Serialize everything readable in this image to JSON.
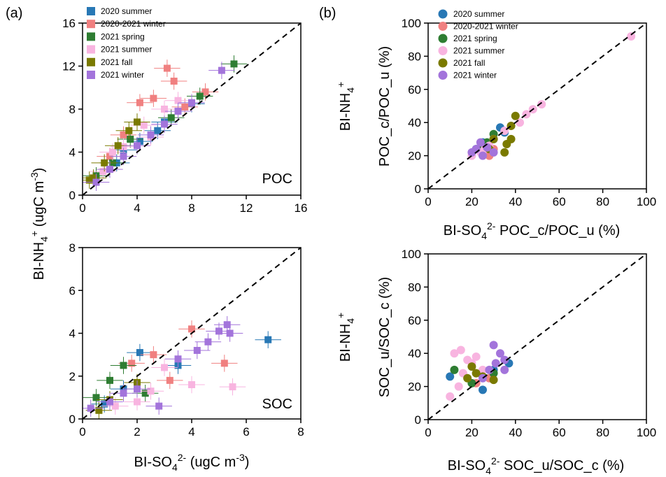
{
  "panel_letters": [
    "(a)",
    "(b)"
  ],
  "series_colors": {
    "2020 summer": "#2878b5",
    "2020-2021 winter": "#f08080",
    "2021 spring": "#2e7d32",
    "2021 summer": "#f8b4e0",
    "2021 fall": "#7a7a00",
    "2021 winter": "#a374db"
  },
  "chart_data": [
    {
      "type": "scatter",
      "panel": "(a) top",
      "annotation": "POC",
      "xlim": [
        0,
        16
      ],
      "ylim": [
        0,
        16
      ],
      "xticks": [
        0,
        4,
        8,
        12,
        16
      ],
      "yticks": [
        0,
        4,
        8,
        12,
        16
      ],
      "error_bars": true,
      "marker": "square",
      "reference_line": "1:1 dashed",
      "legend": [
        "2020 summer",
        "2020-2021 winter",
        "2021 spring",
        "2021 summer",
        "2021 fall",
        "2021 winter"
      ],
      "legend_position": "top-left",
      "series": [
        {
          "name": "2020 summer",
          "points": [
            [
              1.0,
              1.2
            ],
            [
              2.5,
              3.0
            ],
            [
              4.2,
              5.0
            ],
            [
              6.0,
              6.8
            ],
            [
              8.0,
              8.5
            ],
            [
              3.0,
              4.2
            ],
            [
              5.5,
              6.0
            ]
          ]
        },
        {
          "name": "2020-2021 winter",
          "points": [
            [
              6.2,
              11.8
            ],
            [
              6.7,
              10.6
            ],
            [
              5.2,
              9.0
            ],
            [
              4.2,
              8.6
            ],
            [
              9.0,
              9.6
            ],
            [
              3.0,
              5.6
            ],
            [
              7.5,
              8.2
            ],
            [
              2.0,
              3.6
            ]
          ]
        },
        {
          "name": "2021 spring",
          "points": [
            [
              11.1,
              12.2
            ],
            [
              8.6,
              9.2
            ],
            [
              1.0,
              1.8
            ],
            [
              2.2,
              3.0
            ],
            [
              3.5,
              5.2
            ],
            [
              6.5,
              7.2
            ]
          ]
        },
        {
          "name": "2021 summer",
          "points": [
            [
              1.5,
              2.2
            ],
            [
              3.0,
              4.5
            ],
            [
              4.5,
              6.5
            ],
            [
              6.0,
              8.0
            ],
            [
              7.0,
              8.8
            ],
            [
              2.2,
              4.0
            ],
            [
              5.0,
              5.4
            ]
          ]
        },
        {
          "name": "2021 fall",
          "points": [
            [
              0.8,
              1.6
            ],
            [
              1.6,
              3.0
            ],
            [
              2.6,
              4.6
            ],
            [
              3.4,
              6.0
            ],
            [
              0.5,
              1.4
            ],
            [
              4.0,
              6.8
            ]
          ]
        },
        {
          "name": "2021 winter",
          "points": [
            [
              10.2,
              11.6
            ],
            [
              1.0,
              1.2
            ],
            [
              2.0,
              2.4
            ],
            [
              3.0,
              3.6
            ],
            [
              4.0,
              4.6
            ],
            [
              5.0,
              5.6
            ],
            [
              6.0,
              6.6
            ],
            [
              7.0,
              7.8
            ],
            [
              8.0,
              8.6
            ]
          ]
        }
      ]
    },
    {
      "type": "scatter",
      "panel": "(a) bottom",
      "annotation": "SOC",
      "xlim": [
        0,
        8
      ],
      "ylim": [
        0,
        8
      ],
      "xticks": [
        0,
        2,
        4,
        6,
        8
      ],
      "yticks": [
        0,
        2,
        4,
        6,
        8
      ],
      "error_bars": true,
      "marker": "square",
      "reference_line": "1:1 dashed",
      "series": [
        {
          "name": "2020 summer",
          "points": [
            [
              6.8,
              3.7
            ],
            [
              2.1,
              3.1
            ],
            [
              1.5,
              1.4
            ],
            [
              3.5,
              2.5
            ],
            [
              0.8,
              0.7
            ]
          ]
        },
        {
          "name": "2020-2021 winter",
          "points": [
            [
              4.0,
              4.2
            ],
            [
              1.8,
              2.6
            ],
            [
              2.6,
              3.0
            ],
            [
              5.2,
              2.6
            ],
            [
              3.2,
              1.8
            ]
          ]
        },
        {
          "name": "2021 spring",
          "points": [
            [
              1.5,
              2.5
            ],
            [
              0.5,
              1.0
            ],
            [
              2.3,
              1.2
            ],
            [
              1.0,
              1.8
            ]
          ]
        },
        {
          "name": "2021 summer",
          "points": [
            [
              2.5,
              1.3
            ],
            [
              4.0,
              1.6
            ],
            [
              1.2,
              0.6
            ],
            [
              3.0,
              2.4
            ],
            [
              5.5,
              1.5
            ],
            [
              2.0,
              0.8
            ]
          ]
        },
        {
          "name": "2021 fall",
          "points": [
            [
              1.0,
              0.9
            ],
            [
              2.0,
              1.7
            ],
            [
              0.6,
              0.4
            ]
          ]
        },
        {
          "name": "2021 winter",
          "points": [
            [
              5.3,
              4.4
            ],
            [
              5.4,
              4.0
            ],
            [
              5.0,
              4.1
            ],
            [
              4.6,
              3.6
            ],
            [
              3.5,
              2.8
            ],
            [
              2.8,
              0.6
            ],
            [
              2.0,
              1.4
            ],
            [
              1.5,
              1.2
            ],
            [
              1.0,
              0.8
            ],
            [
              0.3,
              0.5
            ],
            [
              4.2,
              3.2
            ]
          ]
        }
      ]
    },
    {
      "type": "scatter",
      "panel": "(b) top",
      "xlim": [
        0,
        100
      ],
      "ylim": [
        0,
        100
      ],
      "xticks": [
        0,
        20,
        40,
        60,
        80,
        100
      ],
      "yticks": [
        0,
        20,
        40,
        60,
        80,
        100
      ],
      "marker": "circle",
      "reference_line": "1:1 dashed",
      "legend": [
        "2020 summer",
        "2020-2021 winter",
        "2021 spring",
        "2021 summer",
        "2021 fall",
        "2021 winter"
      ],
      "legend_position": "top-left",
      "series": [
        {
          "name": "2020 summer",
          "points": [
            [
              35,
              34
            ],
            [
              33,
              37
            ],
            [
              25,
              28
            ],
            [
              30,
              30
            ],
            [
              22,
              24
            ]
          ]
        },
        {
          "name": "2020-2021 winter",
          "points": [
            [
              28,
              20
            ],
            [
              25,
              22
            ],
            [
              30,
              24
            ]
          ]
        },
        {
          "name": "2021 spring",
          "points": [
            [
              30,
              33
            ],
            [
              27,
              28
            ],
            [
              24,
              24
            ]
          ]
        },
        {
          "name": "2021 summer",
          "points": [
            [
              93,
              92
            ],
            [
              52,
              51
            ],
            [
              48,
              48
            ],
            [
              45,
              45
            ],
            [
              42,
              40
            ],
            [
              38,
              38
            ],
            [
              35,
              35
            ],
            [
              30,
              30
            ],
            [
              28,
              26
            ],
            [
              24,
              22
            ],
            [
              20,
              20
            ],
            [
              26,
              24
            ]
          ]
        },
        {
          "name": "2021 fall",
          "points": [
            [
              40,
              44
            ],
            [
              38,
              30
            ],
            [
              36,
              27
            ],
            [
              35,
              22
            ],
            [
              30,
              30
            ],
            [
              28,
              24
            ],
            [
              38,
              38
            ]
          ]
        },
        {
          "name": "2021 winter",
          "points": [
            [
              25,
              20
            ],
            [
              22,
              24
            ],
            [
              27,
              25
            ],
            [
              30,
              22
            ],
            [
              24,
              28
            ],
            [
              20,
              22
            ]
          ]
        }
      ]
    },
    {
      "type": "scatter",
      "panel": "(b) bottom",
      "xlim": [
        0,
        100
      ],
      "ylim": [
        0,
        100
      ],
      "xticks": [
        0,
        20,
        40,
        60,
        80,
        100
      ],
      "yticks": [
        0,
        20,
        40,
        60,
        80,
        100
      ],
      "marker": "circle",
      "reference_line": "1:1 dashed",
      "series": [
        {
          "name": "2020 summer",
          "points": [
            [
              10,
              26
            ],
            [
              37,
              34
            ],
            [
              25,
              18
            ],
            [
              30,
              30
            ]
          ]
        },
        {
          "name": "2020-2021 winter",
          "points": [
            [
              28,
              25
            ],
            [
              22,
              22
            ]
          ]
        },
        {
          "name": "2021 spring",
          "points": [
            [
              12,
              30
            ],
            [
              20,
              22
            ],
            [
              30,
              28
            ]
          ]
        },
        {
          "name": "2021 summer",
          "points": [
            [
              10,
              14
            ],
            [
              12,
              40
            ],
            [
              15,
              42
            ],
            [
              18,
              36
            ],
            [
              22,
              38
            ],
            [
              25,
              30
            ],
            [
              16,
              28
            ],
            [
              20,
              34
            ],
            [
              14,
              20
            ]
          ]
        },
        {
          "name": "2021 fall",
          "points": [
            [
              20,
              32
            ],
            [
              18,
              25
            ],
            [
              22,
              28
            ],
            [
              25,
              26
            ],
            [
              30,
              24
            ]
          ]
        },
        {
          "name": "2021 winter",
          "points": [
            [
              30,
              45
            ],
            [
              33,
              40
            ],
            [
              35,
              36
            ],
            [
              28,
              30
            ],
            [
              25,
              25
            ],
            [
              35,
              30
            ],
            [
              31,
              34
            ]
          ]
        }
      ]
    }
  ]
}
